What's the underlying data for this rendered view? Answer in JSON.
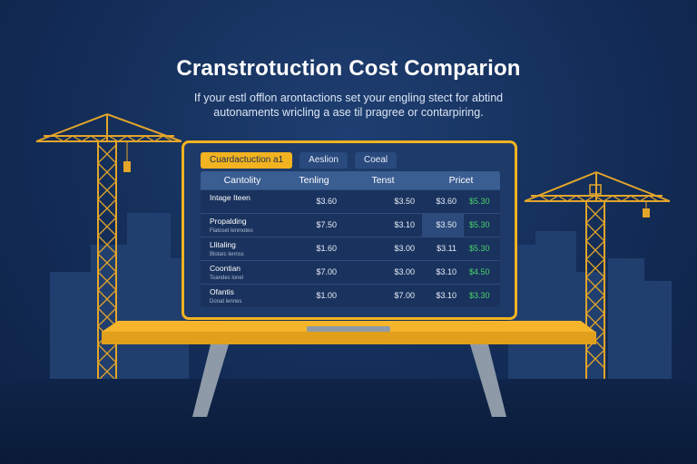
{
  "header": {
    "title": "Cranstrotuction Cost Comparion",
    "subtitle_line1": "If your estl offlon arontactions set your engling stect for abtind",
    "subtitle_line2": "autonaments wricling a ase til pragree or contarpiring."
  },
  "tabs": [
    {
      "label": "Cuardactuction a1",
      "active": true
    },
    {
      "label": "Aeslion",
      "active": false
    },
    {
      "label": "Coeal",
      "active": false
    }
  ],
  "table": {
    "headers": [
      "Cantolity",
      "Tenling",
      "Tenst",
      "Pricet"
    ],
    "rows": [
      {
        "name": "Intage Iteen",
        "sub": "",
        "v1": "$3.60",
        "v2": "$3.50",
        "v3": "$3.60",
        "v4": "$5.30",
        "highlight": false
      },
      {
        "name": "Propalding",
        "sub": "Flatoset lenmoteo",
        "v1": "$7.50",
        "v2": "$3.10",
        "v3": "$3.50",
        "v4": "$5.30",
        "highlight": true
      },
      {
        "name": "Llitaling",
        "sub": "Blotarc lennss",
        "v1": "$1.60",
        "v2": "$3.00",
        "v3": "$3.11",
        "v4": "$5.30",
        "highlight": false
      },
      {
        "name": "Coontian",
        "sub": "Toandes lonel",
        "v1": "$7.00",
        "v2": "$3.00",
        "v3": "$3.10",
        "v4": "$4.50",
        "highlight": false
      },
      {
        "name": "Ofantis",
        "sub": "Donat lennes",
        "v1": "$1.00",
        "v2": "$7.00",
        "v3": "$3.10",
        "v4": "$3.30",
        "highlight": false
      }
    ]
  },
  "colors": {
    "accent": "#f2b320",
    "positive": "#48d36a",
    "background": "#15305c"
  }
}
